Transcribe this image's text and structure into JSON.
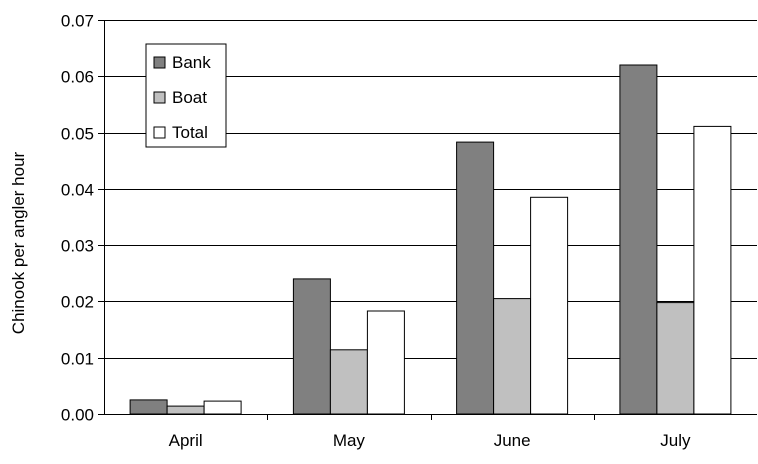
{
  "chart_data": {
    "type": "bar",
    "title": "",
    "xlabel": "",
    "ylabel": "Chinook per angler hour",
    "categories": [
      "April",
      "May",
      "June",
      "July"
    ],
    "series": [
      {
        "name": "Bank",
        "values": [
          0.0025,
          0.024,
          0.0483,
          0.062
        ]
      },
      {
        "name": "Boat",
        "values": [
          0.0014,
          0.0114,
          0.0205,
          0.0198
        ]
      },
      {
        "name": "Total",
        "values": [
          0.0023,
          0.0183,
          0.0385,
          0.0511
        ]
      }
    ],
    "ylim": [
      0,
      0.07
    ],
    "yticks": [
      "0.00",
      "0.01",
      "0.02",
      "0.03",
      "0.04",
      "0.05",
      "0.06",
      "0.07"
    ],
    "grid": true,
    "legend_position": "top-left",
    "colors": {
      "Bank": "#808080",
      "Boat": "#c0c0c0",
      "Total": "#ffffff",
      "outline": "#000000",
      "grid": "#000000"
    }
  }
}
